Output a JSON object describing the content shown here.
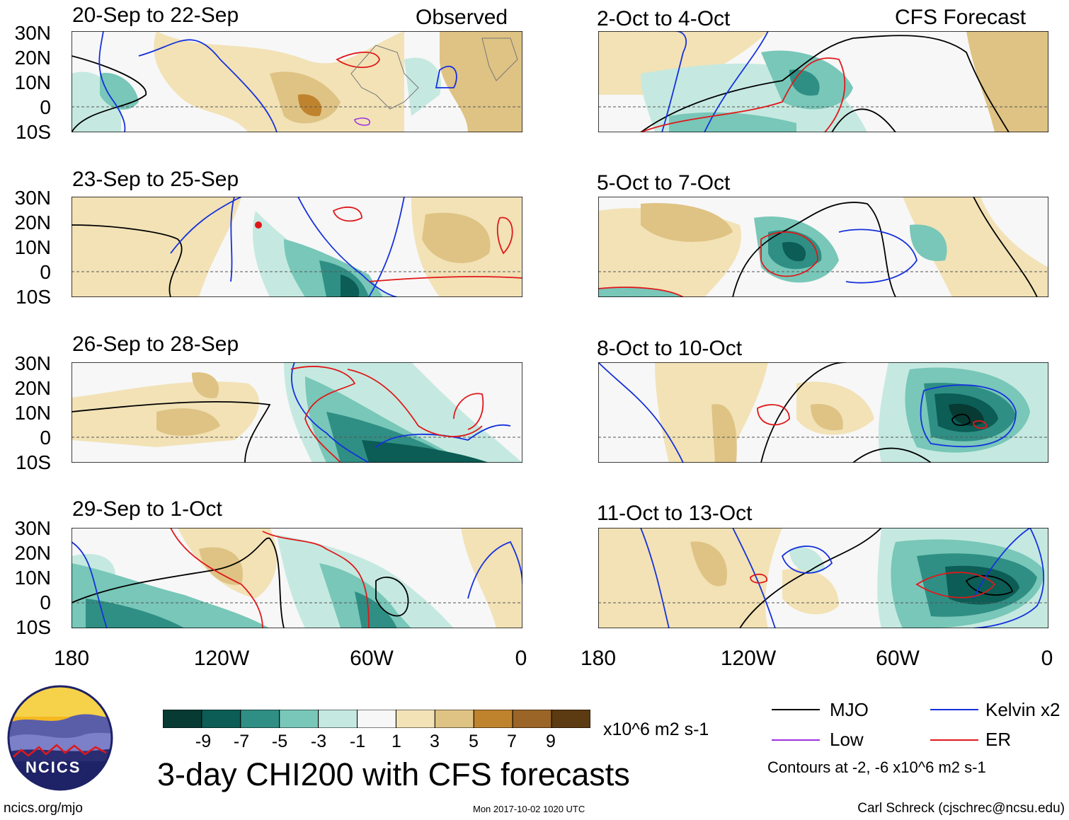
{
  "left_column_label": "Observed",
  "right_column_label": "CFS Forecast",
  "panels_left": [
    {
      "title": "20-Sep to 22-Sep"
    },
    {
      "title": "23-Sep to 25-Sep"
    },
    {
      "title": "26-Sep to 28-Sep"
    },
    {
      "title": "29-Sep to 1-Oct"
    }
  ],
  "panels_right": [
    {
      "title": "2-Oct to 4-Oct"
    },
    {
      "title": "5-Oct to 7-Oct"
    },
    {
      "title": "8-Oct to 10-Oct"
    },
    {
      "title": "11-Oct to 13-Oct"
    }
  ],
  "lat_labels": [
    "30N",
    "20N",
    "10N",
    "0",
    "10S"
  ],
  "lon_labels": [
    "180",
    "120W",
    "60W",
    "0"
  ],
  "colorbar": {
    "colors": [
      "#063a33",
      "#0b5d55",
      "#2f8f84",
      "#78c7b9",
      "#c5e9e0",
      "#f7f7f7",
      "#f2e2b6",
      "#dfc384",
      "#bf832e",
      "#9a6527",
      "#5c3a12"
    ],
    "ticks": [
      "-9",
      "-7",
      "-5",
      "-3",
      "-1",
      "1",
      "3",
      "5",
      "7",
      "9"
    ],
    "units": "x10^6 m2 s-1"
  },
  "main_title": "3-day CHI200 with CFS forecasts",
  "legend": {
    "items": [
      {
        "label": "MJO",
        "color": "#000000"
      },
      {
        "label": "Kelvin x2",
        "color": "#1530dd"
      },
      {
        "label": "Low",
        "color": "#a030e0"
      },
      {
        "label": "ER",
        "color": "#e0181a"
      }
    ],
    "contours_note": "Contours at -2, -6 x10^6 m2 s-1"
  },
  "logo_text": "NCICS",
  "footer": {
    "url": "ncics.org/mjo",
    "timestamp": "Mon 2017-10-02 1020 UTC",
    "credit": "Carl Schreck (cjschrec@ncsu.edu)"
  },
  "map_regions": {
    "latitude_range": [
      "10S",
      "30N"
    ],
    "longitude_range": [
      "180",
      "0"
    ]
  }
}
